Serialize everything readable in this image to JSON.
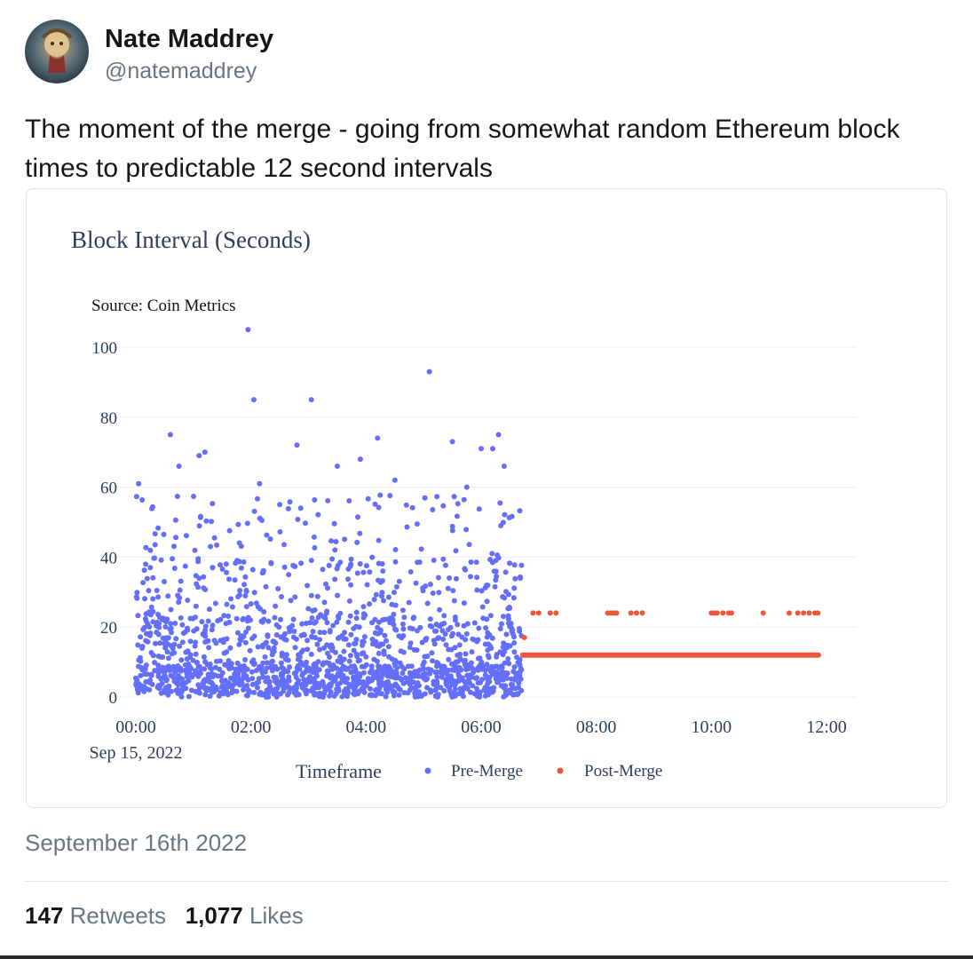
{
  "user": {
    "name": "Nate Maddrey",
    "handle": "@natemaddrey"
  },
  "tweet": {
    "text": "The moment of the merge - going from somewhat random Ethereum block times to predictable 12 second intervals",
    "date": "September 16th 2022"
  },
  "stats": {
    "retweets_count": "147",
    "retweets_label": "Retweets",
    "likes_count": "1,077",
    "likes_label": "Likes"
  },
  "chart_data": {
    "type": "scatter",
    "title": "Block Interval (Seconds)",
    "subtitle": "Source: Coin Metrics",
    "legend_title": "Timeframe",
    "legend_position": "bottom",
    "grid": true,
    "x_ticks": [
      "00:00",
      "02:00",
      "04:00",
      "06:00",
      "08:00",
      "10:00",
      "12:00"
    ],
    "x_tick_sub": "Sep 15, 2022",
    "y_ticks": [
      0,
      20,
      40,
      60,
      80,
      100
    ],
    "xlim": [
      0,
      12
    ],
    "ylim": [
      0,
      105
    ],
    "colors": {
      "pre": "#636efa",
      "post": "#ef553b"
    },
    "series": [
      {
        "name": "Pre-Merge",
        "x_range": [
          0,
          6.7
        ],
        "highlight_points": [
          {
            "x": 0.05,
            "y": 61
          },
          {
            "x": 0.6,
            "y": 75
          },
          {
            "x": 0.75,
            "y": 66
          },
          {
            "x": 1.1,
            "y": 69
          },
          {
            "x": 1.2,
            "y": 70
          },
          {
            "x": 1.95,
            "y": 105
          },
          {
            "x": 2.05,
            "y": 85
          },
          {
            "x": 2.15,
            "y": 61
          },
          {
            "x": 2.5,
            "y": 55
          },
          {
            "x": 2.8,
            "y": 72
          },
          {
            "x": 3.05,
            "y": 85
          },
          {
            "x": 3.5,
            "y": 66
          },
          {
            "x": 3.9,
            "y": 68
          },
          {
            "x": 4.2,
            "y": 74
          },
          {
            "x": 4.5,
            "y": 62
          },
          {
            "x": 5.1,
            "y": 93
          },
          {
            "x": 5.5,
            "y": 73
          },
          {
            "x": 5.75,
            "y": 60
          },
          {
            "x": 6.0,
            "y": 71
          },
          {
            "x": 6.2,
            "y": 71
          },
          {
            "x": 6.3,
            "y": 75
          },
          {
            "x": 6.4,
            "y": 66
          }
        ]
      },
      {
        "name": "Post-Merge",
        "x_range": [
          6.7,
          12
        ],
        "baseline_y": 12,
        "points": [
          {
            "x": 6.75,
            "y": 17
          },
          {
            "x": 6.9,
            "y": 24
          },
          {
            "x": 7.0,
            "y": 24
          },
          {
            "x": 7.2,
            "y": 24
          },
          {
            "x": 7.3,
            "y": 24
          },
          {
            "x": 8.2,
            "y": 24
          },
          {
            "x": 8.25,
            "y": 24
          },
          {
            "x": 8.3,
            "y": 24
          },
          {
            "x": 8.35,
            "y": 24
          },
          {
            "x": 8.6,
            "y": 24
          },
          {
            "x": 8.7,
            "y": 24
          },
          {
            "x": 8.8,
            "y": 24
          },
          {
            "x": 10.0,
            "y": 24
          },
          {
            "x": 10.05,
            "y": 24
          },
          {
            "x": 10.1,
            "y": 24
          },
          {
            "x": 10.2,
            "y": 24
          },
          {
            "x": 10.3,
            "y": 24
          },
          {
            "x": 10.35,
            "y": 24
          },
          {
            "x": 10.9,
            "y": 24
          },
          {
            "x": 11.35,
            "y": 24
          },
          {
            "x": 11.5,
            "y": 24
          },
          {
            "x": 11.6,
            "y": 24
          },
          {
            "x": 11.7,
            "y": 24
          },
          {
            "x": 11.8,
            "y": 24
          },
          {
            "x": 11.85,
            "y": 24
          }
        ]
      }
    ]
  }
}
